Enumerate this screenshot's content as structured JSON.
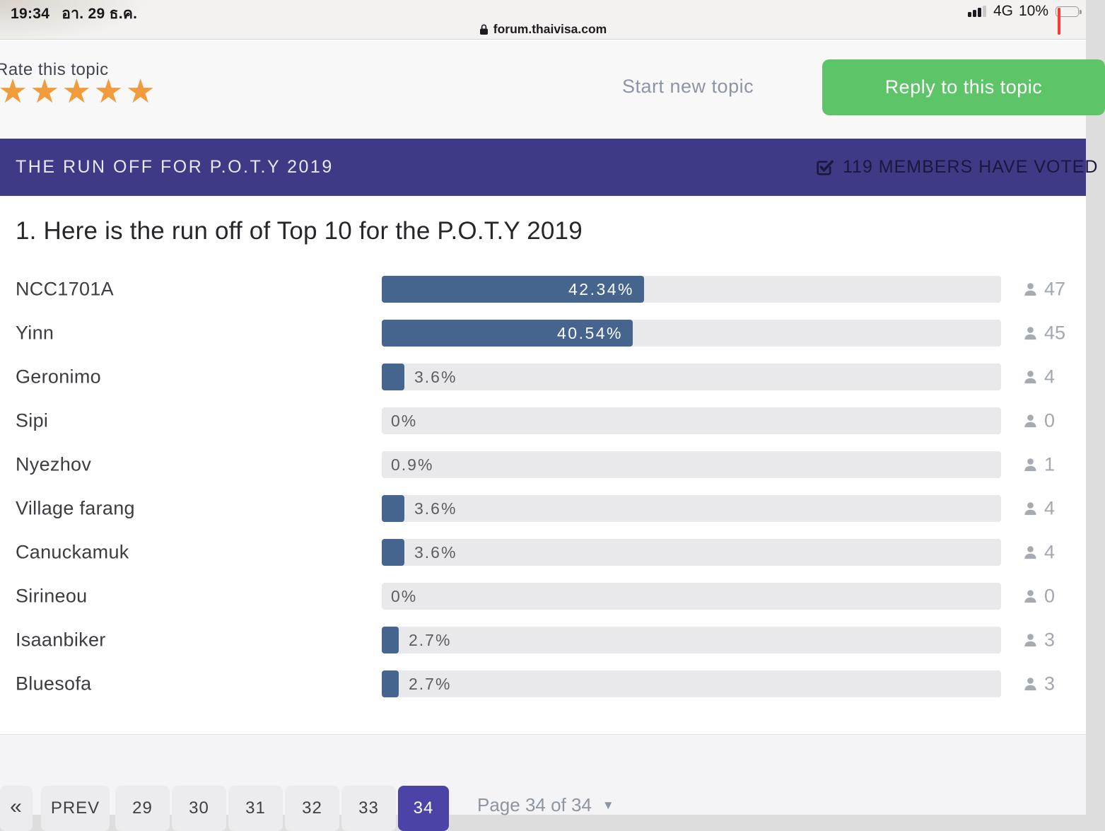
{
  "status_bar": {
    "time": "19:34",
    "date": "อา. 29 ธ.ค.",
    "network": "4G",
    "battery_percent": "10%"
  },
  "address_bar": {
    "domain": "forum.thaivisa.com"
  },
  "topic_toolbar": {
    "rate_label": "Rate this topic",
    "star_count": 5,
    "start_new_topic_label": "Start new topic",
    "reply_button_label": "Reply to this topic"
  },
  "poll_banner": {
    "title": "THE RUN OFF FOR P.O.T.Y 2019",
    "members_voted": "119 MEMBERS HAVE VOTED"
  },
  "poll": {
    "question": "1. Here is the run off of Top 10 for the P.O.T.Y 2019",
    "options": [
      {
        "name": "NCC1701A",
        "percent": 42.34,
        "percent_label": "42.34%",
        "votes": 47
      },
      {
        "name": "Yinn",
        "percent": 40.54,
        "percent_label": "40.54%",
        "votes": 45
      },
      {
        "name": "Geronimo",
        "percent": 3.6,
        "percent_label": "3.6%",
        "votes": 4
      },
      {
        "name": "Sipi",
        "percent": 0,
        "percent_label": "0%",
        "votes": 0
      },
      {
        "name": "Nyezhov",
        "percent": 0.9,
        "percent_label": "0.9%",
        "votes": 1
      },
      {
        "name": "Village farang",
        "percent": 3.6,
        "percent_label": "3.6%",
        "votes": 4
      },
      {
        "name": "Canuckamuk",
        "percent": 3.6,
        "percent_label": "3.6%",
        "votes": 4
      },
      {
        "name": "Sirineou",
        "percent": 0,
        "percent_label": "0%",
        "votes": 0
      },
      {
        "name": "Isaanbiker",
        "percent": 2.7,
        "percent_label": "2.7%",
        "votes": 3
      },
      {
        "name": "Bluesofa",
        "percent": 2.7,
        "percent_label": "2.7%",
        "votes": 3
      }
    ]
  },
  "pagination": {
    "first_label": "«",
    "prev_label": "PREV",
    "pages": [
      "29",
      "30",
      "31",
      "32",
      "33",
      "34"
    ],
    "active_page": "34",
    "page_info": "Page 34 of 34"
  },
  "colors": {
    "banner_purple": "#3e3a85",
    "bar_blue": "#45658e",
    "bar_track": "#e9e9eb",
    "reply_green": "#5dc468",
    "star_orange": "#f09c3c",
    "active_page_purple": "#4b43a5",
    "battery_red": "#ff3b30"
  }
}
